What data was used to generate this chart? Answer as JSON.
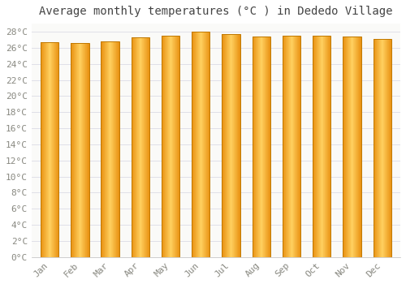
{
  "title": "Average monthly temperatures (°C ) in Dededo Village",
  "months": [
    "Jan",
    "Feb",
    "Mar",
    "Apr",
    "May",
    "Jun",
    "Jul",
    "Aug",
    "Sep",
    "Oct",
    "Nov",
    "Dec"
  ],
  "values": [
    26.7,
    26.6,
    26.8,
    27.3,
    27.5,
    28.0,
    27.7,
    27.4,
    27.5,
    27.5,
    27.4,
    27.1
  ],
  "bar_color_center": "#FFD060",
  "bar_color_edge": "#E89010",
  "bar_edge_color": "#C07800",
  "background_color": "#FFFFFF",
  "plot_bg_color": "#FAFAF8",
  "grid_color": "#E0E0E8",
  "title_color": "#444444",
  "tick_label_color": "#888880",
  "ylim": [
    0,
    29
  ],
  "ytick_step": 2,
  "title_fontsize": 10,
  "tick_fontsize": 8,
  "bar_width": 0.6
}
